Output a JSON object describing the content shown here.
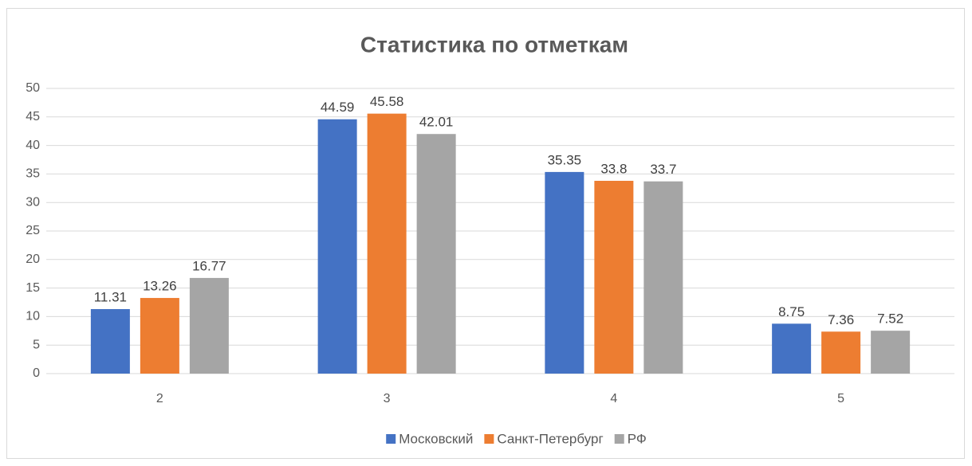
{
  "chart_data": {
    "type": "bar",
    "title": "Статистика по отметкам",
    "categories": [
      "2",
      "3",
      "4",
      "5"
    ],
    "series": [
      {
        "name": "Московский",
        "color": "#4472c4",
        "values": [
          11.31,
          44.59,
          35.35,
          8.75
        ]
      },
      {
        "name": "Санкт-Петербург",
        "color": "#ed7d31",
        "values": [
          13.26,
          45.58,
          33.8,
          7.36
        ]
      },
      {
        "name": "РФ",
        "color": "#a5a5a5",
        "values": [
          16.77,
          42.01,
          33.7,
          7.52
        ]
      }
    ],
    "ylim": [
      0,
      50
    ],
    "yticks": [
      0,
      5,
      10,
      15,
      20,
      25,
      30,
      35,
      40,
      45,
      50
    ],
    "grid": true,
    "legend": "bottom"
  }
}
